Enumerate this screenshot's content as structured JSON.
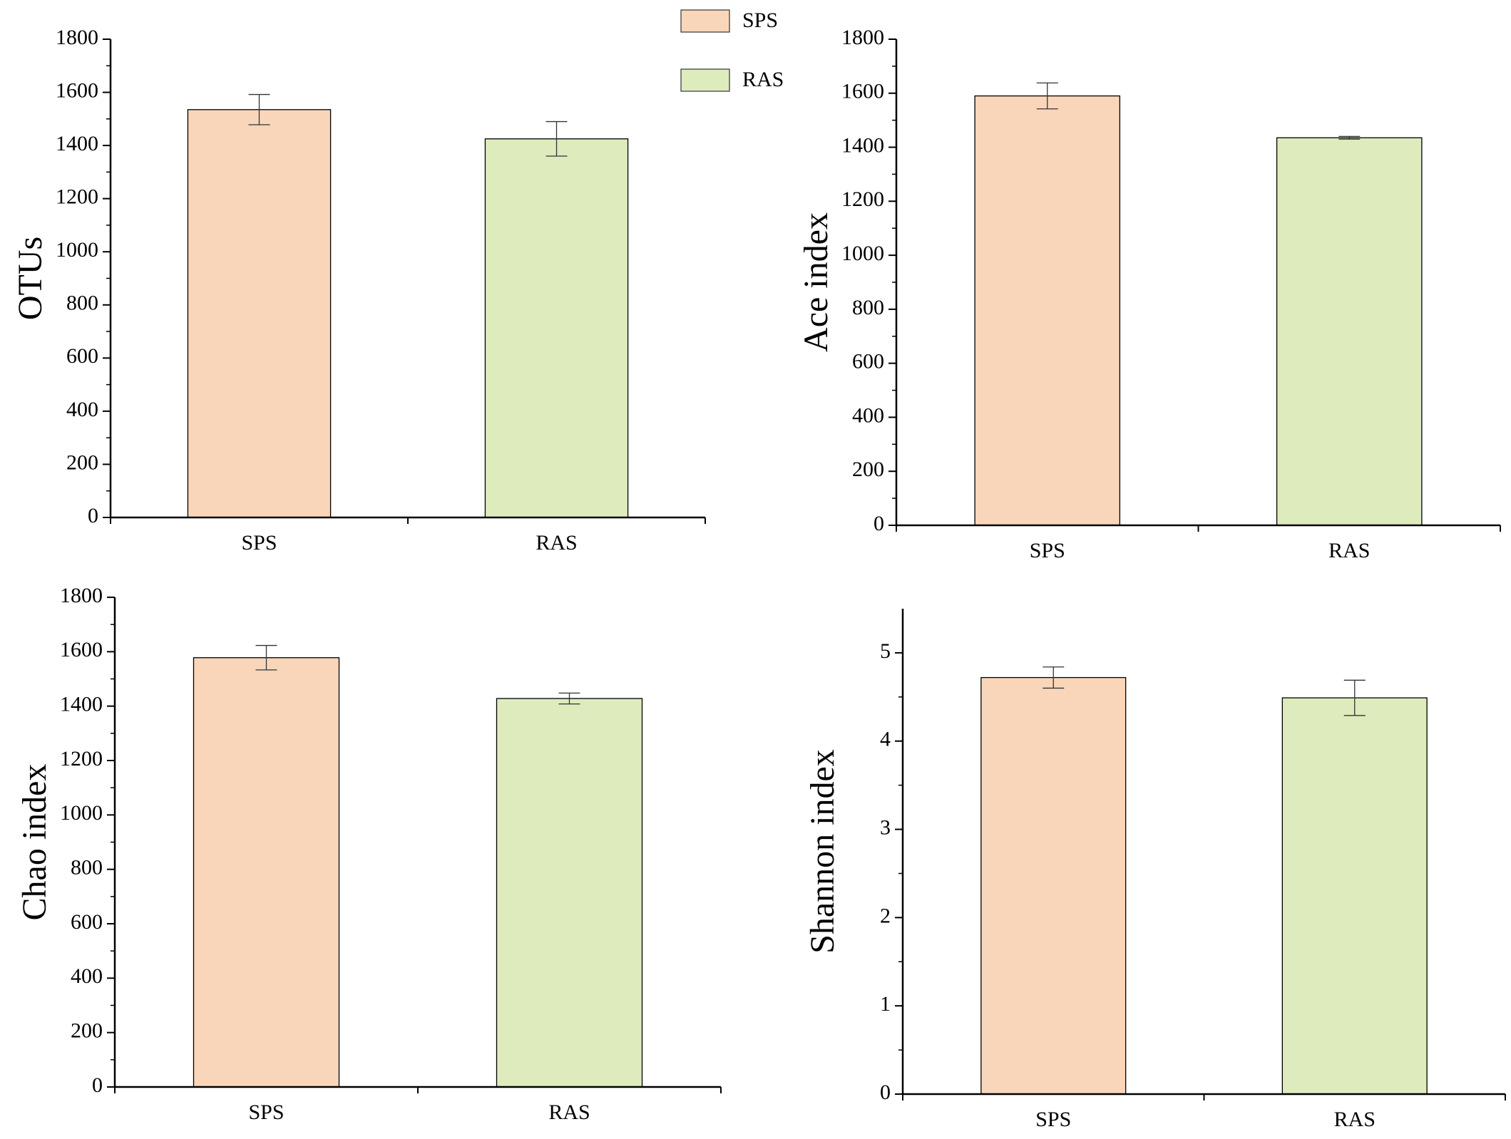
{
  "legend": {
    "items": [
      {
        "name": "SPS",
        "color": "#f9d6ba"
      },
      {
        "name": "RAS",
        "color": "#deebbd"
      }
    ]
  },
  "chart_data": [
    {
      "type": "bar",
      "ylabel": "OTUs",
      "categories": [
        "SPS",
        "RAS"
      ],
      "values": [
        1535,
        1425
      ],
      "errors": [
        57,
        65
      ],
      "colors": [
        "#f9d6ba",
        "#deebbd"
      ],
      "ylim": [
        0,
        1800
      ],
      "yticks": [
        0,
        200,
        400,
        600,
        800,
        1000,
        1200,
        1400,
        1600,
        1800
      ]
    },
    {
      "type": "bar",
      "ylabel": "Ace index",
      "categories": [
        "SPS",
        "RAS"
      ],
      "values": [
        1590,
        1435
      ],
      "errors": [
        48,
        5
      ],
      "colors": [
        "#f9d6ba",
        "#deebbd"
      ],
      "ylim": [
        0,
        1800
      ],
      "yticks": [
        0,
        200,
        400,
        600,
        800,
        1000,
        1200,
        1400,
        1600,
        1800
      ]
    },
    {
      "type": "bar",
      "ylabel": "Chao index",
      "categories": [
        "SPS",
        "RAS"
      ],
      "values": [
        1578,
        1428
      ],
      "errors": [
        45,
        20
      ],
      "colors": [
        "#f9d6ba",
        "#deebbd"
      ],
      "ylim": [
        0,
        1800
      ],
      "yticks": [
        0,
        200,
        400,
        600,
        800,
        1000,
        1200,
        1400,
        1600,
        1800
      ]
    },
    {
      "type": "bar",
      "ylabel": "Shannon index",
      "categories": [
        "SPS",
        "RAS"
      ],
      "values": [
        4.72,
        4.49
      ],
      "errors": [
        0.12,
        0.2
      ],
      "colors": [
        "#f9d6ba",
        "#deebbd"
      ],
      "ylim": [
        0,
        5.5
      ],
      "yticks": [
        0,
        1,
        2,
        3,
        4,
        5
      ]
    }
  ]
}
